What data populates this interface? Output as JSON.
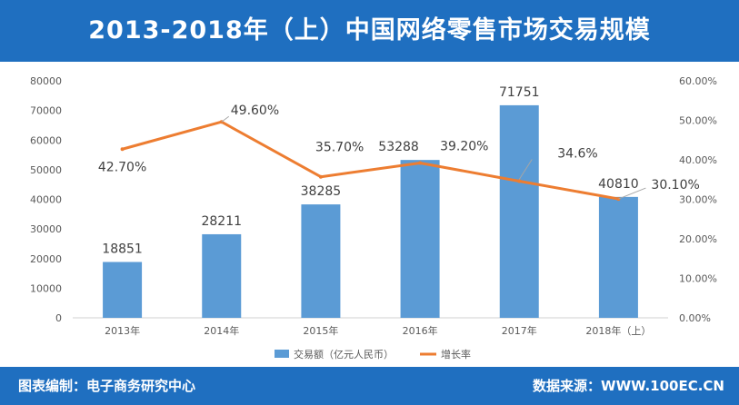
{
  "header": {
    "title": "2013-2018年（上）中国网络零售市场交易规模"
  },
  "footer": {
    "left_text": "图表编制：电子商务研究中心",
    "right_text": "数据来源：WWW.100EC.CN"
  },
  "colors": {
    "bar": "#5b9bd5",
    "line": "#ed7d31",
    "header_bg": "#1f6fc0"
  },
  "chart_data": {
    "type": "bar",
    "categories": [
      "2013年",
      "2014年",
      "2015年",
      "2016年",
      "2017年",
      "2018年（上）"
    ],
    "series": [
      {
        "name": "交易额（亿元人民币）",
        "type": "bar",
        "axis": "left",
        "values": [
          18851,
          28211,
          38285,
          53288,
          71751,
          40810
        ],
        "labels": [
          "18851",
          "28211",
          "38285",
          "53288",
          "71751",
          "40810"
        ]
      },
      {
        "name": "增长率",
        "type": "line",
        "axis": "right",
        "values": [
          42.7,
          49.6,
          35.7,
          39.2,
          34.6,
          30.1
        ],
        "labels": [
          "42.70%",
          "49.60%",
          "35.70%",
          "39.20%",
          "34.6%",
          "30.10%"
        ]
      }
    ],
    "y_left": {
      "min": 0,
      "max": 80000,
      "ticks": [
        "0",
        "10000",
        "20000",
        "30000",
        "40000",
        "50000",
        "60000",
        "70000",
        "80000"
      ]
    },
    "y_right": {
      "min": 0,
      "max": 60,
      "ticks": [
        "0.00%",
        "10.00%",
        "20.00%",
        "30.00%",
        "40.00%",
        "50.00%",
        "60.00%"
      ]
    },
    "grid": false,
    "legend": "bottom"
  }
}
